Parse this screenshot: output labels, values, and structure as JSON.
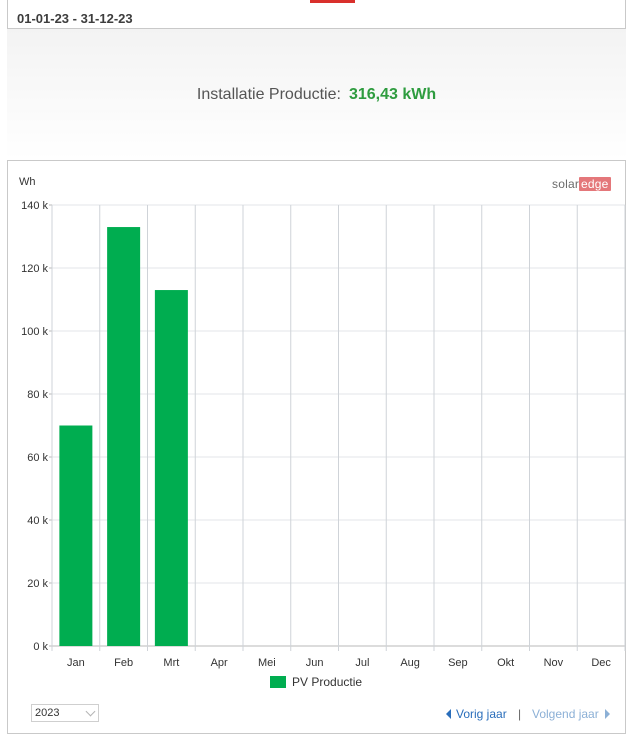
{
  "header": {
    "date_range": "01-01-23 - 31-12-23"
  },
  "summary": {
    "label": "Installatie Productie:",
    "value": "316,43 kWh"
  },
  "brand": {
    "logo_part1": "solar",
    "logo_part2": "edge"
  },
  "chart_data": {
    "type": "bar",
    "ylabel": "Wh",
    "categories": [
      "Jan",
      "Feb",
      "Mrt",
      "Apr",
      "Mei",
      "Jun",
      "Jul",
      "Aug",
      "Sep",
      "Okt",
      "Nov",
      "Dec"
    ],
    "series": [
      {
        "name": "PV Productie",
        "color": "#00ad50",
        "values": [
          70000,
          133000,
          113000,
          null,
          null,
          null,
          null,
          null,
          null,
          null,
          null,
          null
        ]
      }
    ],
    "ylim": [
      0,
      140000
    ],
    "yticks": [
      0,
      20000,
      40000,
      60000,
      80000,
      100000,
      120000,
      140000
    ],
    "ytick_labels": [
      "0 k",
      "20 k",
      "40 k",
      "60 k",
      "80 k",
      "100 k",
      "120 k",
      "140 k"
    ],
    "grid": true,
    "legend_position": "bottom-center"
  },
  "controls": {
    "year_value": "2023",
    "prev_label": "Vorig jaar",
    "separator": "|",
    "next_label": "Volgend jaar"
  }
}
